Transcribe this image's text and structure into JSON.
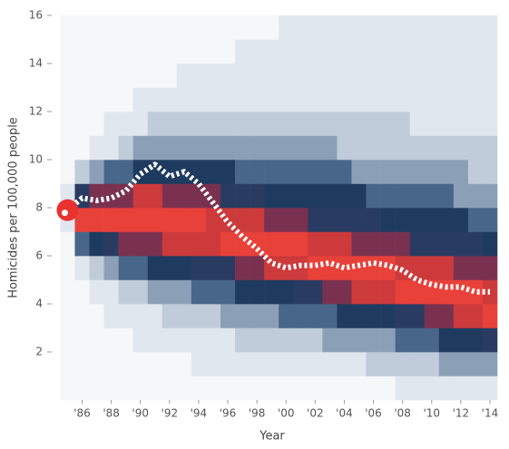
{
  "chart_data": {
    "type": "heatmap",
    "x_label": "Year",
    "y_label": "Homicides per 100,000 people",
    "xlim": [
      1984.1,
      2014.5
    ],
    "ylim": [
      0,
      16
    ],
    "xticks": [
      {
        "value": 1986,
        "label": "'86"
      },
      {
        "value": 1988,
        "label": "'88"
      },
      {
        "value": 1990,
        "label": "'90"
      },
      {
        "value": 1992,
        "label": "'92"
      },
      {
        "value": 1994,
        "label": "'94"
      },
      {
        "value": 1996,
        "label": "'96"
      },
      {
        "value": 1998,
        "label": "'98"
      },
      {
        "value": 2000,
        "label": "'00"
      },
      {
        "value": 2002,
        "label": "'02"
      },
      {
        "value": 2004,
        "label": "'04"
      },
      {
        "value": 2006,
        "label": "'06"
      },
      {
        "value": 2008,
        "label": "'08"
      },
      {
        "value": 2010,
        "label": "'10"
      },
      {
        "value": 2012,
        "label": "'12"
      },
      {
        "value": 2014,
        "label": "'14"
      }
    ],
    "yticks": [
      2,
      4,
      6,
      8,
      10,
      12,
      14,
      16
    ],
    "x": [
      1985,
      1986,
      1987,
      1988,
      1989,
      1990,
      1991,
      1992,
      1993,
      1994,
      1995,
      1996,
      1997,
      1998,
      1999,
      2000,
      2001,
      2002,
      2003,
      2004,
      2005,
      2006,
      2007,
      2008,
      2009,
      2010,
      2011,
      2012,
      2013,
      2014
    ],
    "ybins": [
      0,
      1,
      2,
      3,
      4,
      5,
      6,
      7,
      8,
      9,
      10,
      11,
      12,
      13,
      14,
      15,
      16
    ],
    "colorscale": [
      "#f6f7f9",
      "#e1e7ee",
      "#c0ccd9",
      "#8ba0b7",
      "#48668a",
      "#1e3a5f",
      "#2a3b62",
      "#7a3150",
      "#cc3a3b",
      "#e8413a"
    ],
    "density": [
      [
        0,
        0,
        0,
        0,
        0,
        0,
        0,
        1,
        1,
        0,
        0,
        0,
        0,
        0,
        0,
        0
      ],
      [
        0,
        0,
        0,
        0,
        0,
        1,
        4,
        9,
        6,
        2,
        0,
        0,
        0,
        0,
        0,
        0
      ],
      [
        0,
        0,
        0,
        0,
        1,
        2,
        5,
        9,
        7,
        3,
        1,
        0,
        0,
        0,
        0,
        0
      ],
      [
        0,
        0,
        0,
        1,
        1,
        3,
        6,
        9,
        7,
        4,
        1,
        1,
        0,
        0,
        0,
        0
      ],
      [
        0,
        0,
        0,
        1,
        2,
        4,
        7,
        9,
        7,
        4,
        2,
        1,
        0,
        0,
        0,
        0
      ],
      [
        0,
        0,
        1,
        1,
        2,
        4,
        7,
        9,
        8,
        5,
        3,
        1,
        1,
        0,
        0,
        0
      ],
      [
        0,
        0,
        1,
        1,
        3,
        5,
        7,
        9,
        8,
        5,
        3,
        2,
        1,
        0,
        0,
        0
      ],
      [
        0,
        0,
        1,
        2,
        3,
        5,
        8,
        9,
        7,
        5,
        3,
        2,
        1,
        0,
        0,
        0
      ],
      [
        0,
        0,
        1,
        2,
        3,
        5,
        8,
        9,
        7,
        5,
        3,
        2,
        1,
        1,
        0,
        0
      ],
      [
        0,
        1,
        1,
        2,
        4,
        6,
        8,
        9,
        7,
        5,
        3,
        2,
        1,
        1,
        0,
        0
      ],
      [
        0,
        1,
        1,
        2,
        4,
        6,
        8,
        8,
        7,
        5,
        3,
        2,
        1,
        1,
        0,
        0
      ],
      [
        0,
        1,
        1,
        3,
        4,
        6,
        9,
        8,
        6,
        5,
        3,
        2,
        1,
        1,
        0,
        0
      ],
      [
        0,
        1,
        2,
        3,
        5,
        7,
        9,
        8,
        6,
        4,
        3,
        2,
        1,
        1,
        1,
        0
      ],
      [
        0,
        1,
        2,
        3,
        5,
        7,
        9,
        8,
        6,
        4,
        3,
        2,
        1,
        1,
        1,
        0
      ],
      [
        0,
        1,
        2,
        3,
        5,
        8,
        9,
        7,
        5,
        4,
        3,
        2,
        1,
        1,
        1,
        0
      ],
      [
        0,
        1,
        2,
        4,
        5,
        8,
        9,
        7,
        5,
        4,
        3,
        2,
        1,
        1,
        1,
        1
      ],
      [
        0,
        1,
        2,
        4,
        6,
        8,
        9,
        7,
        5,
        4,
        3,
        2,
        1,
        1,
        1,
        1
      ],
      [
        0,
        1,
        2,
        4,
        6,
        9,
        8,
        6,
        5,
        4,
        3,
        2,
        1,
        1,
        1,
        1
      ],
      [
        0,
        1,
        3,
        4,
        7,
        9,
        8,
        6,
        5,
        4,
        3,
        2,
        1,
        1,
        1,
        1
      ],
      [
        0,
        1,
        3,
        5,
        7,
        9,
        8,
        6,
        5,
        4,
        2,
        2,
        1,
        1,
        1,
        1
      ],
      [
        0,
        1,
        3,
        5,
        8,
        9,
        7,
        6,
        5,
        3,
        2,
        2,
        1,
        1,
        1,
        1
      ],
      [
        0,
        2,
        3,
        5,
        8,
        9,
        7,
        6,
        4,
        3,
        2,
        2,
        1,
        1,
        1,
        1
      ],
      [
        0,
        2,
        3,
        5,
        8,
        9,
        7,
        5,
        4,
        3,
        2,
        2,
        1,
        1,
        1,
        1
      ],
      [
        1,
        2,
        4,
        6,
        9,
        8,
        7,
        5,
        4,
        3,
        2,
        2,
        1,
        1,
        1,
        1
      ],
      [
        1,
        2,
        4,
        6,
        9,
        8,
        6,
        5,
        4,
        3,
        2,
        1,
        1,
        1,
        1,
        1
      ],
      [
        1,
        2,
        4,
        7,
        9,
        8,
        6,
        5,
        4,
        3,
        2,
        1,
        1,
        1,
        1,
        1
      ],
      [
        1,
        3,
        5,
        7,
        9,
        8,
        6,
        5,
        4,
        3,
        2,
        1,
        1,
        1,
        1,
        1
      ],
      [
        1,
        3,
        5,
        8,
        9,
        7,
        6,
        5,
        3,
        3,
        2,
        1,
        1,
        1,
        1,
        1
      ],
      [
        1,
        3,
        5,
        8,
        9,
        7,
        6,
        4,
        3,
        2,
        2,
        1,
        1,
        1,
        1,
        1
      ],
      [
        1,
        3,
        6,
        9,
        8,
        7,
        5,
        4,
        3,
        2,
        2,
        1,
        1,
        1,
        1,
        1
      ]
    ],
    "line": {
      "color": "#ffffff",
      "marker_color": "#e8322f",
      "values": [
        7.9,
        8.4,
        8.3,
        8.4,
        8.7,
        9.4,
        9.8,
        9.3,
        9.5,
        9.0,
        8.2,
        7.4,
        6.8,
        6.3,
        5.7,
        5.5,
        5.6,
        5.6,
        5.7,
        5.5,
        5.6,
        5.7,
        5.6,
        5.4,
        5.0,
        4.8,
        4.7,
        4.7,
        4.5,
        4.5
      ]
    }
  }
}
